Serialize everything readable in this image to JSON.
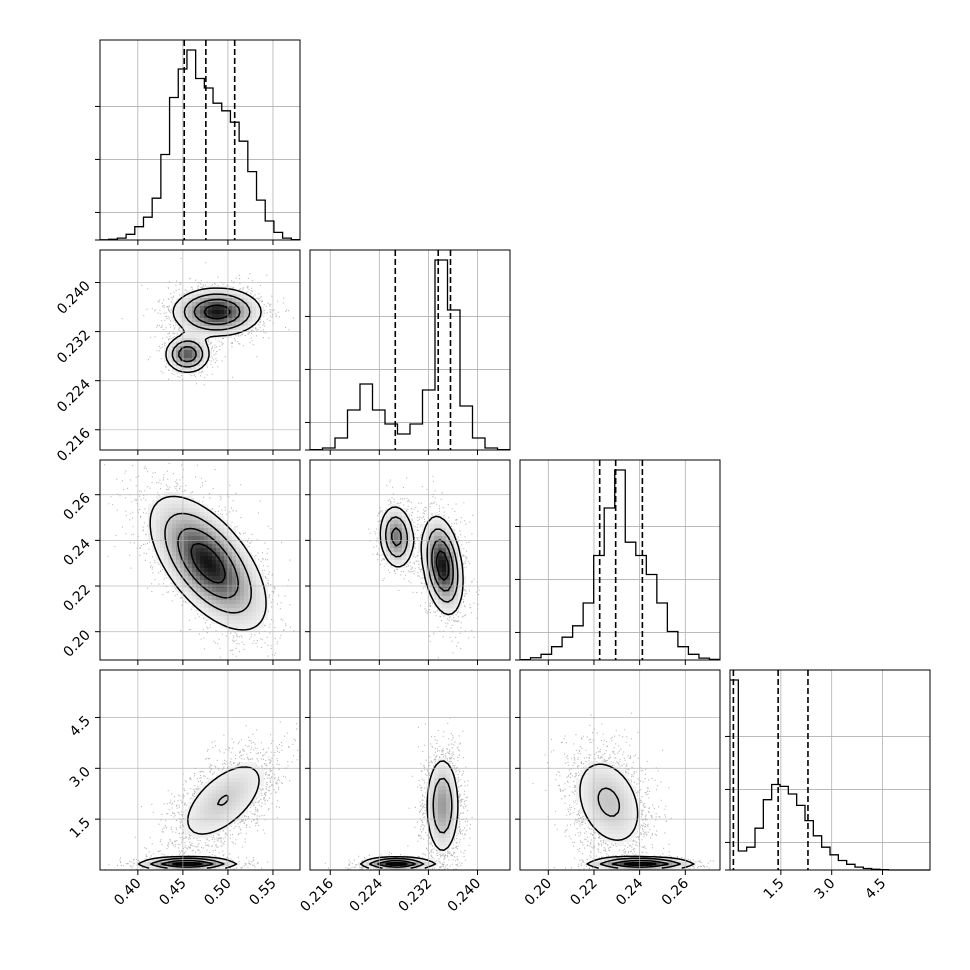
{
  "chart_data": {
    "type": "corner",
    "grid": true,
    "parameters": [
      {
        "ticks": [
          "0.40",
          "0.45",
          "0.50",
          "0.55"
        ],
        "tick_values": [
          0.4,
          0.45,
          0.5,
          0.55
        ],
        "range": [
          0.358,
          0.58
        ]
      },
      {
        "ticks": [
          "0.216",
          "0.224",
          "0.232",
          "0.240"
        ],
        "tick_values": [
          0.216,
          0.224,
          0.232,
          0.24
        ],
        "range": [
          0.2127,
          0.2453
        ]
      },
      {
        "ticks": [
          "0.20",
          "0.22",
          "0.24",
          "0.26"
        ],
        "tick_values": [
          0.2,
          0.22,
          0.24,
          0.26
        ],
        "range": [
          0.1876,
          0.2752
        ]
      },
      {
        "ticks": [
          "1.5",
          "3.0",
          "4.5"
        ],
        "tick_values": [
          1.5,
          3.0,
          4.5
        ],
        "range": [
          0.0,
          5.9
        ]
      }
    ],
    "quantiles": [
      [
        0.4515,
        0.4755,
        0.5075
      ],
      [
        0.2266,
        0.2336,
        0.2356
      ],
      [
        0.2225,
        0.2295,
        0.2412
      ],
      [
        0.1,
        1.42,
        2.3
      ]
    ],
    "histograms": [
      [
        0.001,
        0.004,
        0.01,
        0.03,
        0.07,
        0.12,
        0.22,
        0.45,
        0.75,
        0.9,
        1.0,
        0.85,
        0.8,
        0.72,
        0.68,
        0.62,
        0.52,
        0.36,
        0.21,
        0.1,
        0.04,
        0.01,
        0.002
      ],
      [
        0.002,
        0.01,
        0.06,
        0.2,
        0.33,
        0.2,
        0.13,
        0.08,
        0.13,
        0.3,
        0.95,
        0.7,
        0.22,
        0.06,
        0.01,
        0.002
      ],
      [
        0.002,
        0.012,
        0.03,
        0.07,
        0.12,
        0.18,
        0.3,
        0.55,
        0.8,
        1.0,
        0.62,
        0.55,
        0.45,
        0.3,
        0.15,
        0.07,
        0.03,
        0.01,
        0.003
      ],
      [
        1.0,
        0.1,
        0.12,
        0.22,
        0.37,
        0.45,
        0.44,
        0.4,
        0.34,
        0.26,
        0.18,
        0.12,
        0.08,
        0.05,
        0.03,
        0.015,
        0.008,
        0.004,
        0.002,
        0.0,
        0.0,
        0.0,
        0.0,
        0.0
      ]
    ],
    "pairs": [
      {
        "row": 1,
        "col": 0,
        "modes": [
          {
            "mu": [
              0.488,
              0.2352
            ],
            "sd": [
              0.025,
              0.002
            ],
            "rho": 0.0,
            "w": 0.75
          },
          {
            "mu": [
              0.455,
              0.2283
            ],
            "sd": [
              0.013,
              0.0016
            ],
            "rho": 0.0,
            "w": 0.25
          }
        ]
      },
      {
        "row": 2,
        "col": 0,
        "modes": [
          {
            "mu": [
              0.478,
              0.23
            ],
            "sd": [
              0.033,
              0.015
            ],
            "rho": -0.6,
            "w": 1.0
          }
        ]
      },
      {
        "row": 2,
        "col": 1,
        "modes": [
          {
            "mu": [
              0.2268,
              0.2415
            ],
            "sd": [
              0.0015,
              0.0075
            ],
            "rho": -0.1,
            "w": 0.3
          },
          {
            "mu": [
              0.2343,
              0.229
            ],
            "sd": [
              0.0017,
              0.011
            ],
            "rho": -0.3,
            "w": 0.7
          }
        ]
      },
      {
        "row": 3,
        "col": 0,
        "modes": [
          {
            "mu": [
              0.495,
              2.05
            ],
            "sd": [
              0.03,
              0.75
            ],
            "rho": 0.6,
            "w": 0.7
          },
          {
            "mu": [
              0.455,
              0.18
            ],
            "sd": [
              0.028,
              0.1
            ],
            "rho": 0.0,
            "w": 0.3
          }
        ]
      },
      {
        "row": 3,
        "col": 1,
        "modes": [
          {
            "mu": [
              0.2343,
              1.9
            ],
            "sd": [
              0.0015,
              0.8
            ],
            "rho": 0.0,
            "w": 0.7
          },
          {
            "mu": [
              0.2268,
              0.18
            ],
            "sd": [
              0.003,
              0.1
            ],
            "rho": 0.0,
            "w": 0.3
          }
        ]
      },
      {
        "row": 3,
        "col": 2,
        "modes": [
          {
            "mu": [
              0.2265,
              2.0
            ],
            "sd": [
              0.009,
              0.8
            ],
            "rho": -0.3,
            "w": 0.7
          },
          {
            "mu": [
              0.2405,
              0.18
            ],
            "sd": [
              0.012,
              0.1
            ],
            "rho": 0.0,
            "w": 0.3
          }
        ]
      }
    ]
  }
}
